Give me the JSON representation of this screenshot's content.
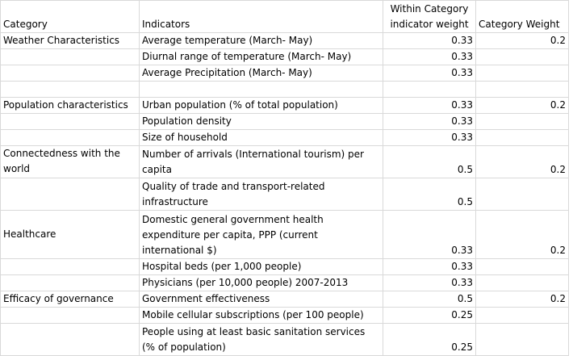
{
  "header": {
    "category": "Category",
    "indicators": "Indicators",
    "within_weight_line1": "Within Category",
    "within_weight_line2": "indicator weight",
    "category_weight": "Category Weight"
  },
  "rows": [
    {
      "category": "Weather Characteristics",
      "indicator": "Average temperature (March- May)",
      "within": "0.33",
      "weight": "0.2"
    },
    {
      "category": "",
      "indicator": "Diurnal range of temperature (March- May)",
      "within": "0.33",
      "weight": ""
    },
    {
      "category": "",
      "indicator": "Average Precipitation (March- May)",
      "within": "0.33",
      "weight": ""
    },
    {
      "category": "",
      "indicator": "",
      "within": "",
      "weight": ""
    },
    {
      "category": "Population characteristics",
      "indicator": "Urban population (% of total population)",
      "within": "0.33",
      "weight": "0.2"
    },
    {
      "category": "",
      "indicator": "Population density",
      "within": "0.33",
      "weight": ""
    },
    {
      "category": "",
      "indicator": "Size of household",
      "within": "0.33",
      "weight": ""
    },
    {
      "category": "Connectedness with the world",
      "indicator": "Number of arrivals (International tourism) per capita",
      "within": "0.5",
      "weight": "0.2"
    },
    {
      "category": "",
      "indicator": "Quality of trade and transport-related infrastructure",
      "within": "0.5",
      "weight": ""
    },
    {
      "category": "Healthcare",
      "indicator": "Domestic general government health expenditure per capita, PPP (current international $)",
      "within": "0.33",
      "weight": "0.2"
    },
    {
      "category": "",
      "indicator": "Hospital beds (per 1,000 people)",
      "within": "0.33",
      "weight": ""
    },
    {
      "category": "",
      "indicator": "Physicians (per 10,000 people) 2007-2013",
      "within": "0.33",
      "weight": ""
    },
    {
      "category": "Efficacy of governance",
      "indicator": "Government effectiveness",
      "within": "0.5",
      "weight": "0.2"
    },
    {
      "category": "",
      "indicator": "Mobile cellular subscriptions (per 100 people)",
      "within": "0.25",
      "weight": ""
    },
    {
      "category": "",
      "indicator": "People using at least basic sanitation services (% of population)",
      "within": "0.25",
      "weight": ""
    }
  ]
}
